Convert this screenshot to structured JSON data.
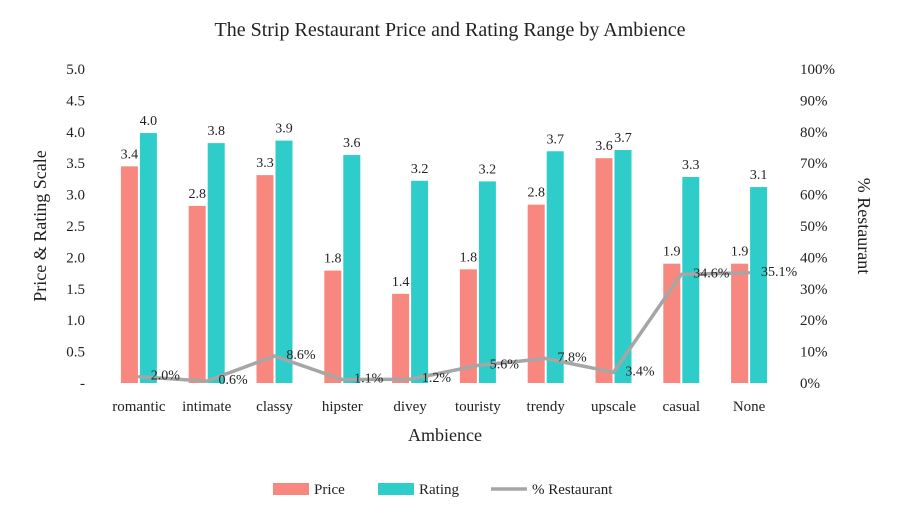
{
  "chart_data": {
    "type": "bar",
    "title": "The Strip Restaurant Price and Rating Range by Ambience",
    "xlabel": "Ambience",
    "ylabel": "Price & Rating Scale",
    "y2label": "% Restaurant",
    "categories": [
      "romantic",
      "intimate",
      "classy",
      "hipster",
      "divey",
      "touristy",
      "trendy",
      "upscale",
      "casual",
      "None"
    ],
    "ylim": [
      0,
      5
    ],
    "y_ticks": [
      "-",
      "0.5",
      "1.0",
      "1.5",
      "2.0",
      "2.5",
      "3.0",
      "3.5",
      "4.0",
      "4.5",
      "5.0"
    ],
    "y2lim": [
      0,
      100
    ],
    "y2_ticks": [
      "0%",
      "10%",
      "20%",
      "30%",
      "40%",
      "50%",
      "60%",
      "70%",
      "80%",
      "90%",
      "100%"
    ],
    "grid": false,
    "legend_position": "bottom",
    "series": [
      {
        "name": "Price",
        "kind": "bar",
        "color": "#F8877F",
        "values": [
          3.45,
          2.82,
          3.31,
          1.79,
          1.42,
          1.81,
          2.84,
          3.58,
          1.9,
          1.9
        ],
        "labels": [
          "3.4",
          "2.8",
          "3.3",
          "1.8",
          "1.4",
          "1.8",
          "2.8",
          "3.6",
          "1.9",
          "1.9"
        ]
      },
      {
        "name": "Rating",
        "kind": "bar",
        "color": "#2FCDCA",
        "values": [
          3.98,
          3.82,
          3.86,
          3.63,
          3.22,
          3.21,
          3.69,
          3.71,
          3.28,
          3.12
        ],
        "labels": [
          "4.0",
          "3.8",
          "3.9",
          "3.6",
          "3.2",
          "3.2",
          "3.7",
          "3.7",
          "3.3",
          "3.1"
        ]
      },
      {
        "name": "% Restaurant",
        "kind": "line",
        "axis": "secondary",
        "color": "#A6A6A6",
        "values": [
          2.0,
          0.6,
          8.6,
          1.1,
          1.2,
          5.6,
          7.8,
          3.4,
          34.6,
          35.1
        ],
        "labels": [
          "2.0%",
          "0.6%",
          "8.6%",
          "1.1%",
          "1.2%",
          "5.6%",
          "7.8%",
          "3.4%",
          "34.6%",
          "35.1%"
        ]
      }
    ]
  }
}
